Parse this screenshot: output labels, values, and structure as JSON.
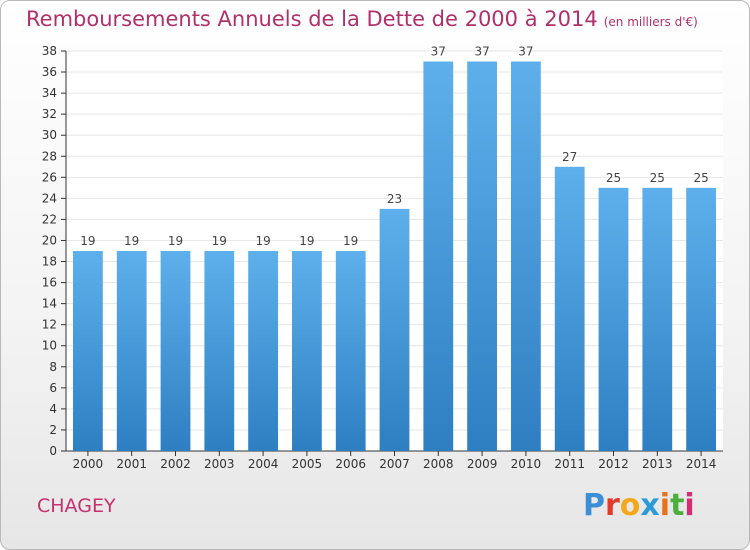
{
  "header": {
    "title": "Remboursements Annuels de la Dette de 2000 à 2014",
    "unit": "(en milliers d'€)"
  },
  "footer": {
    "commune": "CHAGEY",
    "logo_letters": [
      {
        "ch": "P",
        "color": "#3b8fd6"
      },
      {
        "ch": "r",
        "color": "#e23a2b"
      },
      {
        "ch": "o",
        "color": "#f3a81c"
      },
      {
        "ch": "x",
        "color": "#2d9ad8"
      },
      {
        "ch": "i",
        "color": "#e9701c"
      },
      {
        "ch": "t",
        "color": "#4cae3c"
      },
      {
        "ch": "i",
        "color": "#d42f72"
      }
    ]
  },
  "chart_data": {
    "type": "bar",
    "title": "Remboursements Annuels de la Dette de 2000 à 2014",
    "categories": [
      "2000",
      "2001",
      "2002",
      "2003",
      "2004",
      "2005",
      "2006",
      "2007",
      "2008",
      "2009",
      "2010",
      "2011",
      "2012",
      "2013",
      "2014"
    ],
    "values": [
      19,
      19,
      19,
      19,
      19,
      19,
      19,
      23,
      37,
      37,
      37,
      27,
      25,
      25,
      25
    ],
    "ylim": [
      0,
      38
    ],
    "ytick_step": 2,
    "grid": true,
    "bar_color_top": "#5eb0ec",
    "bar_color_bottom": "#2e7fc2"
  }
}
